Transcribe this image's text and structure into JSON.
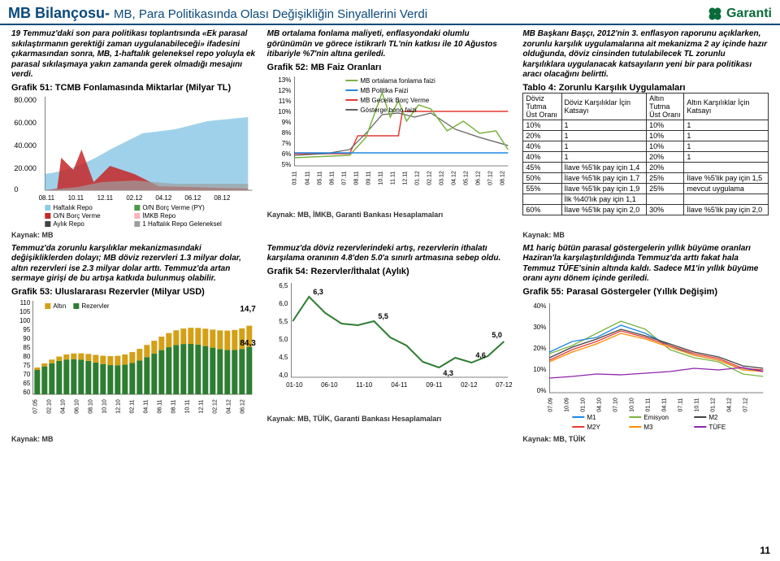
{
  "header": {
    "title_main": "MB Bilançosu-",
    "title_sub": "MB, Para Politikasında Olası Değişikliğin Sinyallerini Verdi",
    "logo_text": "Garanti"
  },
  "row1": {
    "left": {
      "intro": "19 Temmuz'daki son para politikası toplantısında «Ek parasal sıkılaştırmanın gerektiği zaman uygulanabileceği» ifadesini çıkarmasından sonra, MB, 1-haftalık geleneksel repo yoluyla ek parasal sıkılaşmaya yakın zamanda gerek olmadığı mesajını verdi.",
      "chart_title": "Grafik 51: TCMB Fonlamasında Miktarlar (Milyar TL)",
      "source": "Kaynak: MB",
      "chart": {
        "type": "area-stacked",
        "y_ticks": [
          "0",
          "20.000",
          "40.000",
          "60.000",
          "80.000"
        ],
        "x_ticks": [
          "08.11",
          "10.11",
          "12.11",
          "02.12",
          "04.12",
          "06.12",
          "08.12"
        ],
        "legend": [
          {
            "color": "#8ecae6",
            "label": "Haftalık Repo"
          },
          {
            "color": "#c62828",
            "label": "O/N Borç Verme"
          },
          {
            "color": "#424242",
            "label": "Aylık Repo"
          },
          {
            "color": "#4a9b4a",
            "label": "O/N Borç Verme (PY)"
          },
          {
            "color": "#ffb3ba",
            "label": "İMKB Repo"
          },
          {
            "color": "#9e9e9e",
            "label": "1 Haftalık Repo Geleneksel"
          }
        ]
      }
    },
    "mid": {
      "intro": "MB ortalama fonlama maliyeti, enflasyondaki olumlu görünümün ve görece istikrarlı TL'nin katkısı ile 10 Ağustos itibariyle %7'nin altına geriledi.",
      "chart_title": "Grafik 52: MB Faiz Oranları",
      "source": "Kaynak: MB, İMKB, Garanti Bankası Hesaplamaları",
      "chart": {
        "type": "line",
        "y_ticks": [
          "5%",
          "6%",
          "7%",
          "8%",
          "9%",
          "10%",
          "11%",
          "12%",
          "13%"
        ],
        "x_ticks": [
          "03.11",
          "04.11",
          "05.11",
          "06.11",
          "07.11",
          "08.11",
          "09.11",
          "10.11",
          "11.11",
          "12.11",
          "01.12",
          "02.12",
          "03.12",
          "04.12",
          "05.12",
          "06.12",
          "07.12",
          "08.12"
        ],
        "legend": [
          {
            "color": "#7cb342",
            "label": "MB ortalama fonlama faizi"
          },
          {
            "color": "#1e88e5",
            "label": "MB Politika Faizi"
          },
          {
            "color": "#e53935",
            "label": "MB Gecelik Borç Verme"
          },
          {
            "color": "#616161",
            "label": "Gösterge bono faizi"
          }
        ]
      }
    },
    "right": {
      "intro": "MB Başkanı Başçı, 2012'nin 3. enflasyon raporunu açıklarken, zorunlu karşılık uygulamalarına ait mekanizma 2 ay içinde hazır olduğunda, döviz cinsinden tutulabilecek TL zorunlu karşılıklara uygulanacak katsayıların yeni bir para politikası aracı olacağını belirtti.",
      "chart_title": "Tablo 4: Zorunlu Karşılık Uygulamaları",
      "source": "Kaynak: MB",
      "table": {
        "headers": [
          "Döviz Tutma Üst Oranı",
          "Döviz Karşılıklar İçin Katsayı",
          "Altın Tutma Üst Oranı",
          "Altın Karşılıklar İçin Katsayı"
        ],
        "rows": [
          [
            "10%",
            "1",
            "10%",
            "1"
          ],
          [
            "20%",
            "1",
            "10%",
            "1"
          ],
          [
            "40%",
            "1",
            "10%",
            "1"
          ],
          [
            "40%",
            "1",
            "20%",
            "1"
          ],
          [
            "45%",
            "İlave %5'lik pay için 1,4",
            "20%",
            ""
          ],
          [
            "50%",
            "İlave %5'lik pay için 1,7",
            "25%",
            "İlave %5'lik pay için 1,5"
          ],
          [
            "55%",
            "İlave %5'lik pay için 1,9",
            "25%",
            "mevcut uygulama"
          ],
          [
            "",
            "İlk %40'lık pay için 1,1",
            "",
            ""
          ],
          [
            "60%",
            "İlave %5'lik pay için 2,0",
            "30%",
            "İlave %5'lik pay için 2,0"
          ]
        ]
      }
    }
  },
  "row2": {
    "left": {
      "intro": "Temmuz'da zorunlu karşılıklar mekanizmasındaki değişikliklerden dolayı; MB döviz rezervleri 1.3 milyar dolar, altın rezervleri ise 2.3 milyar dolar arttı. Temmuz'da artan sermaye girişi de bu artışa katkıda bulunmuş olabilir.",
      "chart_title": "Grafik 53: Uluslararası Rezervler (Milyar USD)",
      "source": "Kaynak: MB",
      "chart": {
        "type": "bar-stacked",
        "y_ticks": [
          "60",
          "65",
          "70",
          "75",
          "80",
          "85",
          "90",
          "95",
          "100",
          "105",
          "110"
        ],
        "x_ticks": [
          "07.05",
          "02.10",
          "04.10",
          "06.10",
          "08.10",
          "10.10",
          "12.10",
          "02.11",
          "04.11",
          "06.11",
          "08.11",
          "10.11",
          "12.11",
          "02.12",
          "04.12",
          "06.12"
        ],
        "legend": [
          {
            "color": "#d4a017",
            "label": "Altın"
          },
          {
            "color": "#2e7d32",
            "label": "Rezervler"
          }
        ],
        "annotations": [
          {
            "value": "14,7",
            "pos": "top-right"
          },
          {
            "value": "84,3",
            "pos": "mid-right"
          }
        ]
      }
    },
    "mid": {
      "intro": "Temmuz'da döviz rezervlerindeki artış, rezervlerin ithalatı karşılama oranının 4.8'den 5.0'a sınırlı artmasına sebep oldu.",
      "chart_title": "Grafik 54: Rezervler/İthalat (Aylık)",
      "source": "Kaynak: MB, TÜİK, Garanti Bankası Hesaplamaları",
      "chart": {
        "type": "line",
        "y_ticks": [
          "4,0",
          "4,5",
          "5,0",
          "5,5",
          "6,0",
          "6,5"
        ],
        "x_ticks": [
          "01-10",
          "06-10",
          "11-10",
          "04-11",
          "09-11",
          "02-12",
          "07-12"
        ],
        "color": "#2e7d32",
        "points": [
          {
            "label": "6,3",
            "y": 6.3
          },
          {
            "label": "5,5",
            "y": 5.5
          },
          {
            "label": "4,3",
            "y": 4.3
          },
          {
            "label": "4,6",
            "y": 4.6
          },
          {
            "label": "5,0",
            "y": 5.0
          }
        ]
      }
    },
    "right": {
      "intro": "M1 hariç bütün parasal göstergelerin yıllık büyüme oranları Haziran'la karşılaştırıldığında Temmuz'da arttı fakat hala Temmuz TÜFE'sinin altında kaldı. Sadece M1'in yıllık büyüme oranı aynı dönem içinde geriledi.",
      "chart_title": "Grafik 55: Parasal Göstergeler (Yıllık Değişim)",
      "source": "Kaynak: MB, TÜİK",
      "chart": {
        "type": "line",
        "y_ticks": [
          "0%",
          "10%",
          "20%",
          "30%",
          "40%"
        ],
        "x_ticks": [
          "07.09",
          "10.09",
          "01.10",
          "04.10",
          "07.10",
          "10.10",
          "01.11",
          "04.11",
          "07.11",
          "10.11",
          "01.12",
          "04.12",
          "07.12"
        ],
        "legend": [
          {
            "color": "#1e88e5",
            "label": "M1"
          },
          {
            "color": "#e53935",
            "label": "M2Y"
          },
          {
            "color": "#7cb342",
            "label": "Emisyon"
          },
          {
            "color": "#fb8c00",
            "label": "M3"
          },
          {
            "color": "#424242",
            "label": "M2"
          },
          {
            "color": "#8e24aa",
            "label": "TÜFE"
          }
        ]
      }
    }
  },
  "page_number": "11"
}
